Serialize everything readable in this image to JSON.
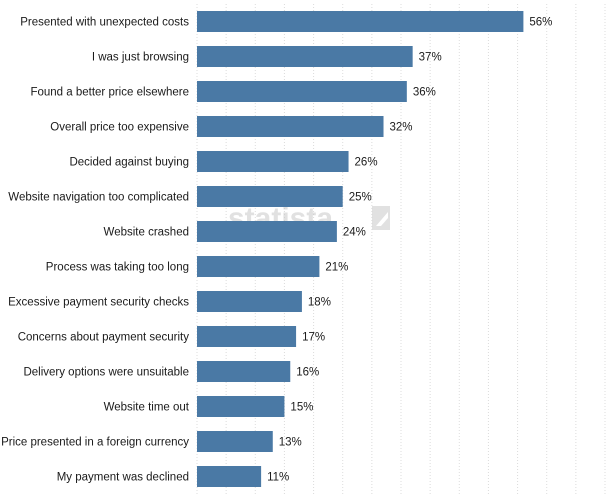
{
  "watermark": "statista",
  "colors": {
    "bar": "#4a79a5",
    "grid": "#dcdcdc",
    "text": "#1a1a1a"
  },
  "chart_data": {
    "type": "bar",
    "orientation": "horizontal",
    "categories": [
      "Presented with unexpected costs",
      "I was just browsing",
      "Found a better price elsewhere",
      "Overall price too expensive",
      "Decided against buying",
      "Website navigation too complicated",
      "Website crashed",
      "Process was taking too long",
      "Excessive payment security checks",
      "Concerns about payment security",
      "Delivery options were unsuitable",
      "Website time out",
      "Price presented in a foreign currency",
      "My payment was declined"
    ],
    "values": [
      56,
      37,
      36,
      32,
      26,
      25,
      24,
      21,
      18,
      17,
      16,
      15,
      13,
      11
    ],
    "value_labels": [
      "56%",
      "37%",
      "36%",
      "32%",
      "26%",
      "25%",
      "24%",
      "21%",
      "18%",
      "17%",
      "16%",
      "15%",
      "13%",
      "11%"
    ],
    "xlim": [
      0,
      70
    ],
    "grid": true
  }
}
